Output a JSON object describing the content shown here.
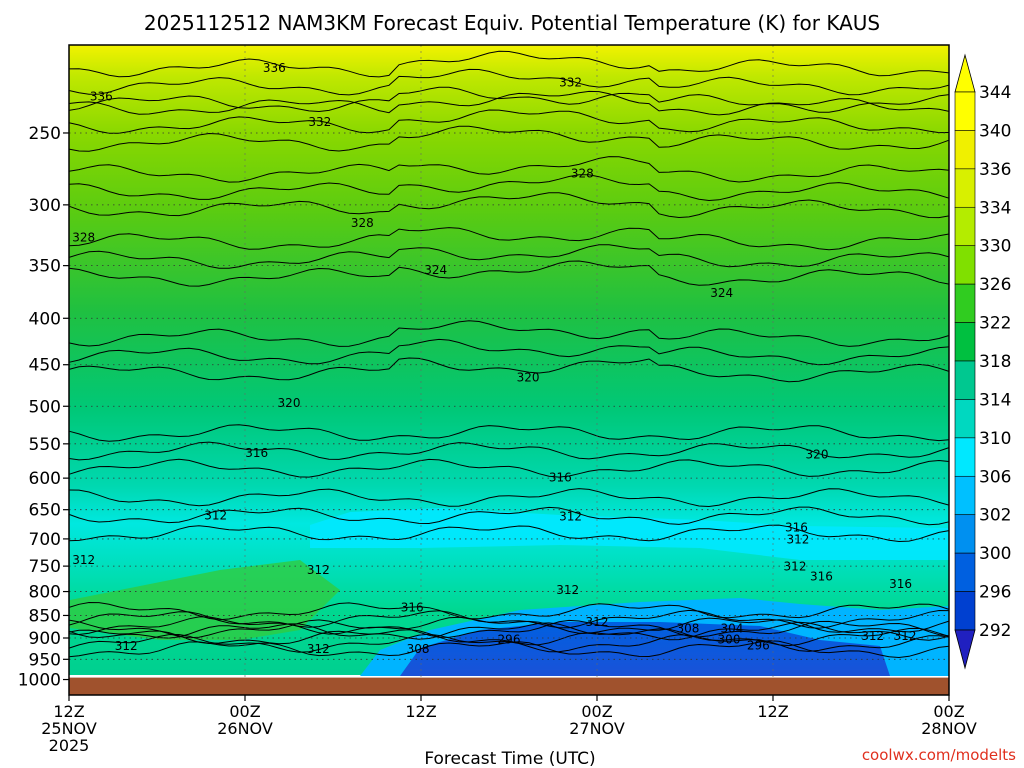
{
  "chart_data": {
    "type": "heatmap",
    "title": "2025112512 NAM3KM Forecast Equiv. Potential Temperature (K) for KAUS",
    "xlabel": "Forecast Time (UTC)",
    "ylabel": "",
    "credit": "coolwx.com/modelts",
    "y_scale": "log",
    "y_inverted": true,
    "y_range": [
      200,
      1040
    ],
    "y_ticks": [
      250,
      300,
      350,
      400,
      450,
      500,
      550,
      600,
      650,
      700,
      750,
      800,
      850,
      900,
      950,
      1000
    ],
    "x_range_hours": [
      0,
      60
    ],
    "x_ticks": [
      {
        "hour": 0,
        "line1": "12Z",
        "line2": "25NOV",
        "line3": "2025"
      },
      {
        "hour": 12,
        "line1": "00Z",
        "line2": "26NOV",
        "line3": ""
      },
      {
        "hour": 24,
        "line1": "12Z",
        "line2": "",
        "line3": ""
      },
      {
        "hour": 36,
        "line1": "00Z",
        "line2": "27NOV",
        "line3": ""
      },
      {
        "hour": 48,
        "line1": "12Z",
        "line2": "",
        "line3": ""
      },
      {
        "hour": 60,
        "line1": "00Z",
        "line2": "28NOV",
        "line3": ""
      }
    ],
    "colorbar": {
      "labels": [
        "344",
        "340",
        "336",
        "334",
        "330",
        "326",
        "322",
        "318",
        "314",
        "310",
        "306",
        "302",
        "300",
        "296",
        "292"
      ],
      "colors": [
        "#ffff00",
        "#f0f000",
        "#d8f000",
        "#b4ec00",
        "#80e000",
        "#30cc20",
        "#00c040",
        "#00c890",
        "#00d8c0",
        "#00e8ff",
        "#00c0ff",
        "#0090f0",
        "#0060e0",
        "#0040d0",
        "#2020c0"
      ]
    },
    "surface_pressure_hpa": 995,
    "field_description_levels": [
      {
        "p": 200,
        "theta_e": 338
      },
      {
        "p": 250,
        "theta_e": 333
      },
      {
        "p": 300,
        "theta_e": 329
      },
      {
        "p": 350,
        "theta_e": 326
      },
      {
        "p": 400,
        "theta_e": 323
      },
      {
        "p": 500,
        "theta_e": 320
      },
      {
        "p": 600,
        "theta_e": 317
      },
      {
        "p": 700,
        "theta_e": 312
      },
      {
        "p": 800,
        "theta_e": 314
      },
      {
        "p": 900,
        "theta_e": 312
      },
      {
        "p": 1000,
        "theta_e": 310
      }
    ],
    "contour_levels": [
      296,
      300,
      304,
      308,
      312,
      316,
      320,
      324,
      328,
      332,
      336
    ],
    "contour_labels": [
      {
        "v": "336",
        "h": 14.0,
        "p": 212
      },
      {
        "v": "336",
        "h": 2.2,
        "p": 228
      },
      {
        "v": "332",
        "h": 17.1,
        "p": 243
      },
      {
        "v": "332",
        "h": 34.2,
        "p": 220
      },
      {
        "v": "328",
        "h": 35.0,
        "p": 277
      },
      {
        "v": "328",
        "h": 1.0,
        "p": 326
      },
      {
        "v": "328",
        "h": 20.0,
        "p": 314
      },
      {
        "v": "324",
        "h": 25.0,
        "p": 354
      },
      {
        "v": "324",
        "h": 44.5,
        "p": 375
      },
      {
        "v": "320",
        "h": 31.3,
        "p": 465
      },
      {
        "v": "320",
        "h": 15.0,
        "p": 496
      },
      {
        "v": "320",
        "h": 51.0,
        "p": 565
      },
      {
        "v": "316",
        "h": 12.8,
        "p": 563
      },
      {
        "v": "316",
        "h": 33.5,
        "p": 599
      },
      {
        "v": "316",
        "h": 49.6,
        "p": 680
      },
      {
        "v": "316",
        "h": 51.3,
        "p": 770
      },
      {
        "v": "316",
        "h": 56.7,
        "p": 785
      },
      {
        "v": "316",
        "h": 23.4,
        "p": 833
      },
      {
        "v": "312",
        "h": 10.0,
        "p": 660
      },
      {
        "v": "312",
        "h": 34.2,
        "p": 661
      },
      {
        "v": "312",
        "h": 1.0,
        "p": 738
      },
      {
        "v": "312",
        "h": 17.0,
        "p": 757
      },
      {
        "v": "312",
        "h": 34.0,
        "p": 797
      },
      {
        "v": "312",
        "h": 36.0,
        "p": 864
      },
      {
        "v": "312",
        "h": 49.7,
        "p": 701
      },
      {
        "v": "312",
        "h": 49.5,
        "p": 751
      },
      {
        "v": "312",
        "h": 54.8,
        "p": 896
      },
      {
        "v": "312",
        "h": 57.0,
        "p": 896
      },
      {
        "v": "312",
        "h": 3.9,
        "p": 918
      },
      {
        "v": "312",
        "h": 17.0,
        "p": 925
      },
      {
        "v": "308",
        "h": 23.8,
        "p": 925
      },
      {
        "v": "308",
        "h": 42.2,
        "p": 879
      },
      {
        "v": "304",
        "h": 45.2,
        "p": 879
      },
      {
        "v": "300",
        "h": 45.0,
        "p": 904
      },
      {
        "v": "296",
        "h": 30.0,
        "p": 903
      },
      {
        "v": "296",
        "h": 47.0,
        "p": 917
      }
    ]
  }
}
